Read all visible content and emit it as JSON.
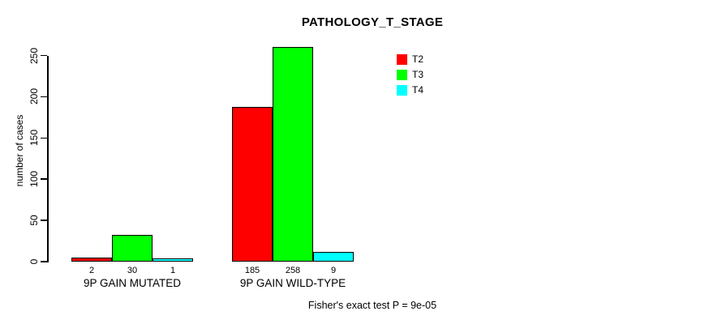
{
  "title": "PATHOLOGY_T_STAGE",
  "footer": "Fisher's exact test P = 9e-05",
  "chart_data": {
    "type": "bar",
    "title": "PATHOLOGY_T_STAGE",
    "xlabel": "",
    "ylabel": "number of cases",
    "ylim": [
      0,
      250
    ],
    "yticks": [
      0,
      50,
      100,
      150,
      200,
      250
    ],
    "grid": false,
    "legend_position": "top-right-inside",
    "categories": [
      "9P GAIN MUTATED",
      "9P GAIN WILD-TYPE"
    ],
    "series": [
      {
        "name": "T2",
        "color": "#FF0000",
        "values": [
          2,
          185
        ]
      },
      {
        "name": "T3",
        "color": "#00FF00",
        "values": [
          30,
          258
        ]
      },
      {
        "name": "T4",
        "color": "#00FFFF",
        "values": [
          1,
          9
        ]
      }
    ],
    "bar_value_labels": [
      [
        2,
        30,
        1
      ],
      [
        185,
        258,
        9
      ]
    ],
    "annotation": "Fisher's exact test P = 9e-05"
  }
}
